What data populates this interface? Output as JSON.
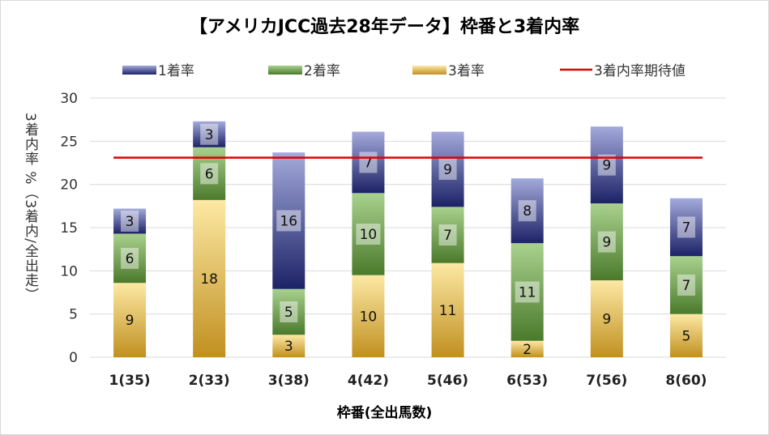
{
  "chart_data": {
    "type": "bar",
    "stacked": true,
    "title": "【アメリカJCC過去28年データ】枠番と3着内率",
    "xlabel": "枠番(全出馬数)",
    "ylabel": "3着内率 %（3着内/全出走）",
    "ylim": [
      0,
      30
    ],
    "yticks": [
      "0",
      "5",
      "10",
      "15",
      "20",
      "25",
      "30"
    ],
    "grid": true,
    "legend_position": "top",
    "categories": [
      "1(35)",
      "2(33)",
      "3(38)",
      "4(42)",
      "5(46)",
      "6(53)",
      "7(56)",
      "8(60)"
    ],
    "series": [
      {
        "name": "3着率",
        "values": [
          8.6,
          18.2,
          2.6,
          9.5,
          10.9,
          1.9,
          8.9,
          5.0
        ],
        "labels": [
          "9",
          "18",
          "3",
          "10",
          "11",
          "2",
          "9",
          "5"
        ],
        "color_top": "#fde9a4",
        "color_bottom": "#c09020"
      },
      {
        "name": "2着率",
        "values": [
          5.7,
          6.1,
          5.3,
          9.5,
          6.5,
          11.3,
          8.9,
          6.7
        ],
        "labels": [
          "6",
          "6",
          "5",
          "10",
          "7",
          "11",
          "9",
          "7"
        ],
        "color_top": "#a9d18e",
        "color_bottom": "#4b7a2c"
      },
      {
        "name": "1着率",
        "values": [
          2.9,
          3.0,
          15.8,
          7.1,
          8.7,
          7.5,
          8.9,
          6.7
        ],
        "labels": [
          "3",
          "3",
          "16",
          "7",
          "9",
          "8",
          "9",
          "7"
        ],
        "color_top": "#a4aadb",
        "color_bottom": "#1c2266"
      }
    ],
    "reference_line": {
      "name": "3着内率期待値",
      "value": 23.1,
      "color": "#e00000"
    }
  }
}
